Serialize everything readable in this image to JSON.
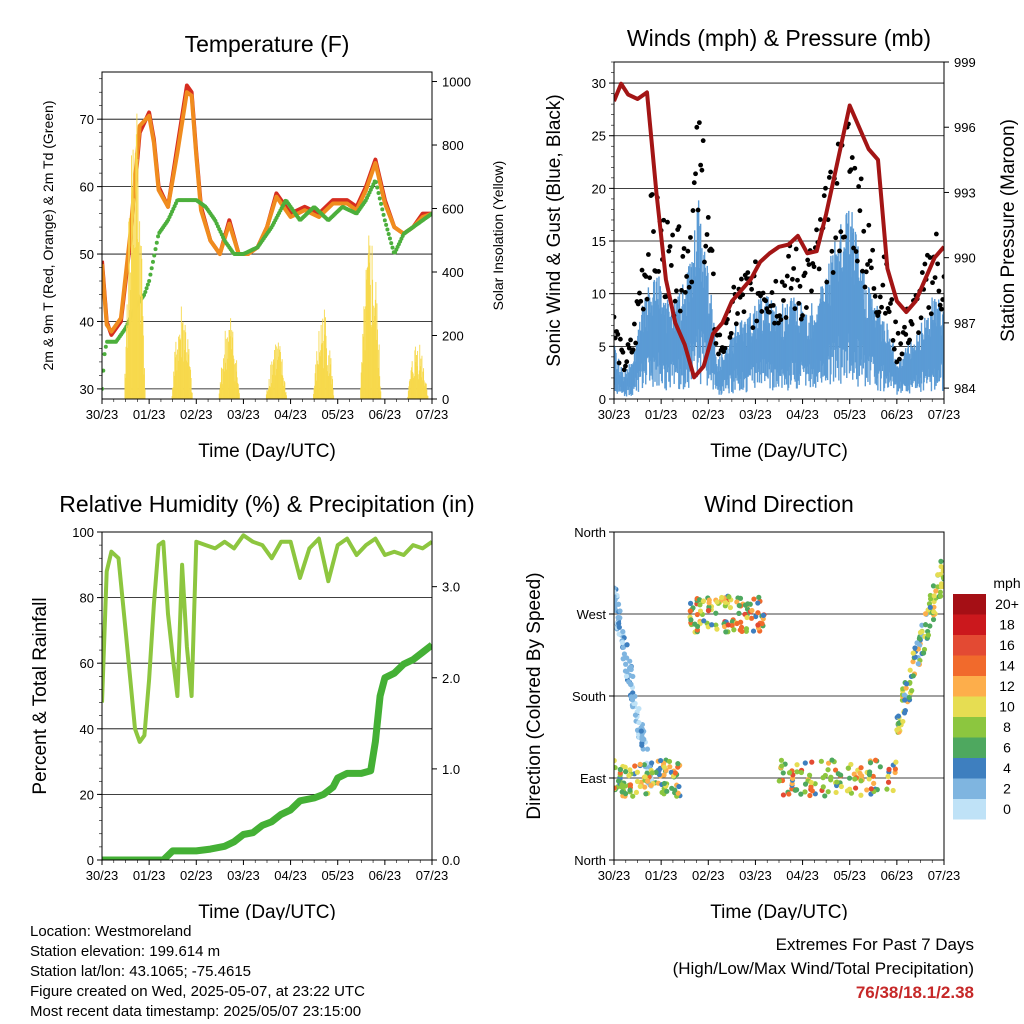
{
  "colors": {
    "temp_red": "#d62d20",
    "temp_orange": "#f08c1e",
    "dewpoint_green": "#4caf3c",
    "solar_yellow": "#f7d94c",
    "wind_blue": "#5b9bd5",
    "gust_black": "#000000",
    "pressure_maroon": "#a31515",
    "rh_lightgreen": "#8dc63f",
    "rain_green": "#44b035",
    "extremes_red": "#c62828"
  },
  "info": {
    "location": "Location: Westmoreland",
    "elevation": "Station elevation: 199.614 m",
    "latlon": "Station lat/lon: 43.1065; -75.4615",
    "created": "Figure created on Wed, 2025-05-07, at 23:22 UTC",
    "recent": "Most recent data timestamp: 2025/05/07 23:15:00"
  },
  "extremes": {
    "title": "Extremes For Past 7 Days",
    "subtitle": "(High/Low/Max Wind/Total Precipitation)",
    "values": "76/38/18.1/2.38"
  },
  "chart_data": [
    {
      "id": "temperature",
      "type": "line",
      "title": "Temperature (F)",
      "xlabel": "Time (Day/UTC)",
      "ylabel": "2m & 9m T (Red, Orange) & 2m Td (Green)",
      "ylabel_right": "Solar Insolation (Yellow)",
      "x_ticks": [
        "30/23",
        "01/23",
        "02/23",
        "03/23",
        "04/23",
        "05/23",
        "06/23",
        "07/23"
      ],
      "xlim": [
        0,
        7
      ],
      "ylim": [
        28.5,
        77
      ],
      "y_ticks": [
        30,
        40,
        50,
        60,
        70
      ],
      "ylim_right": [
        0,
        1030
      ],
      "y_ticks_right": [
        0,
        200,
        400,
        600,
        800,
        1000
      ],
      "grid": true,
      "series": [
        {
          "color_key": "temp_red",
          "axis": "left",
          "style": "line",
          "x": [
            0.0,
            0.1,
            0.2,
            0.4,
            0.6,
            0.8,
            1.0,
            1.1,
            1.2,
            1.4,
            1.6,
            1.8,
            1.9,
            2.0,
            2.1,
            2.3,
            2.5,
            2.7,
            2.9,
            3.1,
            3.3,
            3.5,
            3.7,
            4.0,
            4.3,
            4.6,
            4.9,
            5.2,
            5.4,
            5.6,
            5.8,
            6.0,
            6.2,
            6.4,
            6.6,
            6.8,
            7.0
          ],
          "y": [
            49,
            40,
            38,
            40,
            52,
            68,
            71,
            67,
            60,
            57,
            66,
            75,
            74,
            65,
            57,
            52,
            50,
            55,
            50,
            50,
            51,
            54,
            59,
            56,
            57,
            56,
            58,
            58,
            57,
            60,
            64,
            58,
            54,
            53,
            54,
            56,
            56
          ]
        },
        {
          "color_key": "temp_orange",
          "axis": "left",
          "style": "line",
          "x": [
            0.0,
            0.1,
            0.2,
            0.4,
            0.6,
            0.8,
            1.0,
            1.1,
            1.2,
            1.4,
            1.6,
            1.8,
            1.9,
            2.0,
            2.1,
            2.3,
            2.5,
            2.7,
            2.9,
            3.1,
            3.3,
            3.5,
            3.7,
            4.0,
            4.3,
            4.6,
            4.9,
            5.2,
            5.4,
            5.6,
            5.8,
            6.0,
            6.2,
            6.4,
            6.6,
            6.8,
            7.0
          ],
          "y": [
            48.5,
            39.5,
            38.5,
            40.5,
            53,
            69,
            70.5,
            66.5,
            59.5,
            57,
            65,
            74,
            73.5,
            64.5,
            56.5,
            52,
            50,
            54.5,
            50,
            50,
            51,
            54,
            58.5,
            55.5,
            56.5,
            55.5,
            57.5,
            57.5,
            56.5,
            59.5,
            63.5,
            57.5,
            54,
            53,
            54,
            55.5,
            56
          ]
        },
        {
          "color_key": "dewpoint_green",
          "axis": "left",
          "style": "dots",
          "x": [
            0.0,
            0.05,
            0.1,
            0.3,
            0.5,
            0.7,
            0.9,
            1.0,
            1.2,
            1.4,
            1.6,
            1.8,
            2.0,
            2.2,
            2.4,
            2.6,
            2.8,
            3.0,
            3.3,
            3.6,
            3.9,
            4.2,
            4.5,
            4.8,
            5.1,
            5.4,
            5.6,
            5.8,
            6.0,
            6.2,
            6.4,
            6.6,
            6.8,
            7.0
          ],
          "y": [
            30,
            35,
            37,
            37,
            39,
            42,
            44,
            46,
            53,
            55,
            58,
            58,
            58,
            57,
            55,
            52,
            50,
            50,
            51,
            54,
            58,
            55,
            57,
            55,
            57,
            56,
            58,
            61,
            55,
            50,
            53,
            54,
            55,
            56
          ]
        },
        {
          "color_key": "solar_yellow",
          "axis": "right",
          "style": "bars",
          "day_centers": [
            0.7,
            1.7,
            2.7,
            3.7,
            4.7,
            5.7,
            6.7
          ],
          "day_peaks": [
            1000,
            320,
            280,
            200,
            300,
            550,
            200
          ]
        }
      ]
    },
    {
      "id": "winds",
      "type": "line",
      "title": "Winds (mph) & Pressure (mb)",
      "xlabel": "Time (Day/UTC)",
      "ylabel": "Sonic Wind & Gust (Blue, Black)",
      "ylabel_right": "Station Pressure (Maroon)",
      "x_ticks": [
        "30/23",
        "01/23",
        "02/23",
        "03/23",
        "04/23",
        "05/23",
        "06/23",
        "07/23"
      ],
      "xlim": [
        0,
        7
      ],
      "ylim": [
        0,
        32
      ],
      "y_ticks": [
        0,
        5,
        10,
        15,
        20,
        25,
        30
      ],
      "ylim_right": [
        983.5,
        999
      ],
      "y_ticks_right": [
        984,
        987,
        990,
        993,
        996,
        999
      ],
      "grid": true,
      "series": [
        {
          "name": "Sonic Wind",
          "color_key": "wind_blue",
          "axis": "left",
          "style": "band",
          "x": [
            0.0,
            0.2,
            0.4,
            0.6,
            0.8,
            1.0,
            1.2,
            1.4,
            1.6,
            1.8,
            2.0,
            2.2,
            2.4,
            2.6,
            2.8,
            3.0,
            3.2,
            3.4,
            3.6,
            3.8,
            4.0,
            4.2,
            4.4,
            4.6,
            4.8,
            5.0,
            5.2,
            5.4,
            5.6,
            5.8,
            6.0,
            6.2,
            6.4,
            6.6,
            6.8,
            7.0
          ],
          "y": [
            4,
            2,
            3,
            7,
            9,
            9,
            7,
            8,
            10,
            15,
            10,
            3,
            4,
            6,
            6,
            7,
            8,
            7,
            7,
            8,
            7,
            7,
            9,
            11,
            13,
            15,
            11,
            9,
            7,
            6,
            3,
            4,
            5,
            6,
            8,
            7
          ]
        },
        {
          "name": "Gust",
          "color_key": "gust_black",
          "axis": "left",
          "style": "dots",
          "x": [
            0.0,
            0.2,
            0.4,
            0.6,
            0.8,
            1.0,
            1.2,
            1.4,
            1.6,
            1.8,
            2.0,
            2.2,
            2.4,
            2.6,
            2.8,
            3.0,
            3.2,
            3.4,
            3.6,
            3.8,
            4.0,
            4.2,
            4.4,
            4.6,
            4.8,
            5.0,
            5.2,
            5.4,
            5.6,
            5.8,
            6.0,
            6.2,
            6.4,
            6.6,
            6.8,
            7.0
          ],
          "y": [
            8,
            4,
            6,
            14,
            18,
            18,
            14,
            15,
            18,
            26,
            18,
            6,
            7,
            11,
            12,
            12,
            14,
            12,
            13,
            14,
            13,
            14,
            17,
            20,
            24,
            27,
            20,
            16,
            13,
            12,
            6,
            8,
            10,
            12,
            16,
            13
          ]
        },
        {
          "name": "Station Pressure",
          "color_key": "pressure_maroon",
          "axis": "right",
          "style": "line",
          "x": [
            0.0,
            0.15,
            0.3,
            0.5,
            0.7,
            0.9,
            1.1,
            1.3,
            1.5,
            1.7,
            1.9,
            2.1,
            2.3,
            2.5,
            2.7,
            2.9,
            3.1,
            3.3,
            3.5,
            3.7,
            3.9,
            4.1,
            4.3,
            4.5,
            4.7,
            4.9,
            5.0,
            5.2,
            5.4,
            5.6,
            5.8,
            6.0,
            6.2,
            6.4,
            6.6,
            6.8,
            7.0
          ],
          "y": [
            997.2,
            998.0,
            997.5,
            997.3,
            997.6,
            993.0,
            989.0,
            987.0,
            986.0,
            984.5,
            985.0,
            986.5,
            987.0,
            988.0,
            988.5,
            989.0,
            989.8,
            990.2,
            990.5,
            990.6,
            991.0,
            990.2,
            990.3,
            992.0,
            994.0,
            996.0,
            997.0,
            996.0,
            995.0,
            994.5,
            989.5,
            988.0,
            987.5,
            988.0,
            989.0,
            990.0,
            990.5
          ]
        }
      ]
    },
    {
      "id": "humidity",
      "type": "line",
      "title": "Relative Humidity (%) & Precipitation (in)",
      "xlabel": "Time (Day/UTC)",
      "ylabel": "Percent & Total Rainfall",
      "x_ticks": [
        "30/23",
        "01/23",
        "02/23",
        "03/23",
        "04/23",
        "05/23",
        "06/23",
        "07/23"
      ],
      "xlim": [
        0,
        7
      ],
      "ylim": [
        0,
        100
      ],
      "y_ticks": [
        0,
        20,
        40,
        60,
        80,
        100
      ],
      "ylim_right": [
        0,
        3.6
      ],
      "y_ticks_right": [
        "0.0",
        "1.0",
        "2.0",
        "3.0"
      ],
      "y_ticks_right_values": [
        0,
        1,
        2,
        3
      ],
      "grid": true,
      "series": [
        {
          "color_key": "rh_lightgreen",
          "axis": "left",
          "style": "line",
          "x": [
            0.0,
            0.1,
            0.2,
            0.35,
            0.5,
            0.6,
            0.7,
            0.8,
            0.9,
            1.0,
            1.1,
            1.2,
            1.3,
            1.4,
            1.5,
            1.6,
            1.7,
            1.8,
            1.9,
            2.0,
            2.2,
            2.4,
            2.6,
            2.8,
            3.0,
            3.2,
            3.4,
            3.6,
            3.8,
            4.0,
            4.2,
            4.4,
            4.6,
            4.8,
            5.0,
            5.2,
            5.4,
            5.6,
            5.8,
            6.0,
            6.2,
            6.4,
            6.6,
            6.8,
            7.0
          ],
          "y": [
            48,
            88,
            94,
            92,
            70,
            55,
            40,
            36,
            38,
            55,
            78,
            96,
            97,
            75,
            62,
            50,
            90,
            65,
            50,
            97,
            96,
            95,
            97,
            95,
            99,
            97,
            96,
            92,
            97,
            97,
            86,
            95,
            98,
            85,
            96,
            98,
            93,
            96,
            98,
            93,
            94,
            93,
            96,
            95,
            97
          ]
        },
        {
          "color_key": "rain_green",
          "axis": "right",
          "style": "line",
          "x": [
            0.0,
            0.5,
            1.0,
            1.3,
            1.5,
            1.8,
            2.0,
            2.3,
            2.6,
            2.8,
            3.0,
            3.2,
            3.4,
            3.6,
            3.8,
            4.0,
            4.2,
            4.5,
            4.7,
            4.9,
            5.0,
            5.2,
            5.5,
            5.7,
            5.8,
            5.9,
            6.0,
            6.2,
            6.4,
            6.6,
            6.8,
            7.0
          ],
          "y": [
            0.0,
            0.0,
            0.0,
            0.0,
            0.1,
            0.1,
            0.1,
            0.12,
            0.15,
            0.2,
            0.28,
            0.3,
            0.38,
            0.42,
            0.5,
            0.55,
            0.65,
            0.68,
            0.72,
            0.8,
            0.9,
            0.95,
            0.95,
            0.98,
            1.3,
            1.8,
            2.0,
            2.05,
            2.15,
            2.2,
            2.28,
            2.36
          ]
        }
      ]
    },
    {
      "id": "direction",
      "type": "scatter",
      "title": "Wind Direction",
      "xlabel": "Time (Day/UTC)",
      "ylabel": "Direction (Colored By Speed)",
      "x_ticks": [
        "30/23",
        "01/23",
        "02/23",
        "03/23",
        "04/23",
        "05/23",
        "06/23",
        "07/23"
      ],
      "xlim": [
        0,
        7
      ],
      "ylim": [
        0,
        360
      ],
      "y_tick_labels": [
        "North",
        "East",
        "South",
        "West",
        "North"
      ],
      "y_ticks": [
        0,
        90,
        180,
        270,
        360
      ],
      "grid": true,
      "legend": {
        "title": "mph",
        "labels": [
          "20+",
          "18",
          "16",
          "14",
          "12",
          "10",
          "8",
          "6",
          "4",
          "2",
          "0"
        ],
        "colors": [
          "#a50f15",
          "#cb181d",
          "#e34a33",
          "#f16a2c",
          "#fdae4b",
          "#e6dd52",
          "#8cc63f",
          "#4ea85f",
          "#3e7fbf",
          "#7fb5e0",
          "#bfe2f7"
        ],
        "placement": "right"
      },
      "clusters": [
        {
          "x": [
            0.0,
            0.8
          ],
          "dir": [
            290,
            80
          ],
          "speed": [
            0,
            4
          ]
        },
        {
          "x": [
            0.0,
            1.4
          ],
          "dir": [
            90,
            90
          ],
          "speed": [
            4,
            14
          ]
        },
        {
          "x": [
            1.6,
            3.2
          ],
          "dir": [
            270,
            270
          ],
          "speed": [
            4,
            16
          ]
        },
        {
          "x": [
            3.5,
            6.0
          ],
          "dir": [
            90,
            90
          ],
          "speed": [
            4,
            16
          ]
        },
        {
          "x": [
            6.0,
            7.0
          ],
          "dir": [
            150,
            320
          ],
          "speed": [
            2,
            12
          ]
        }
      ]
    }
  ]
}
